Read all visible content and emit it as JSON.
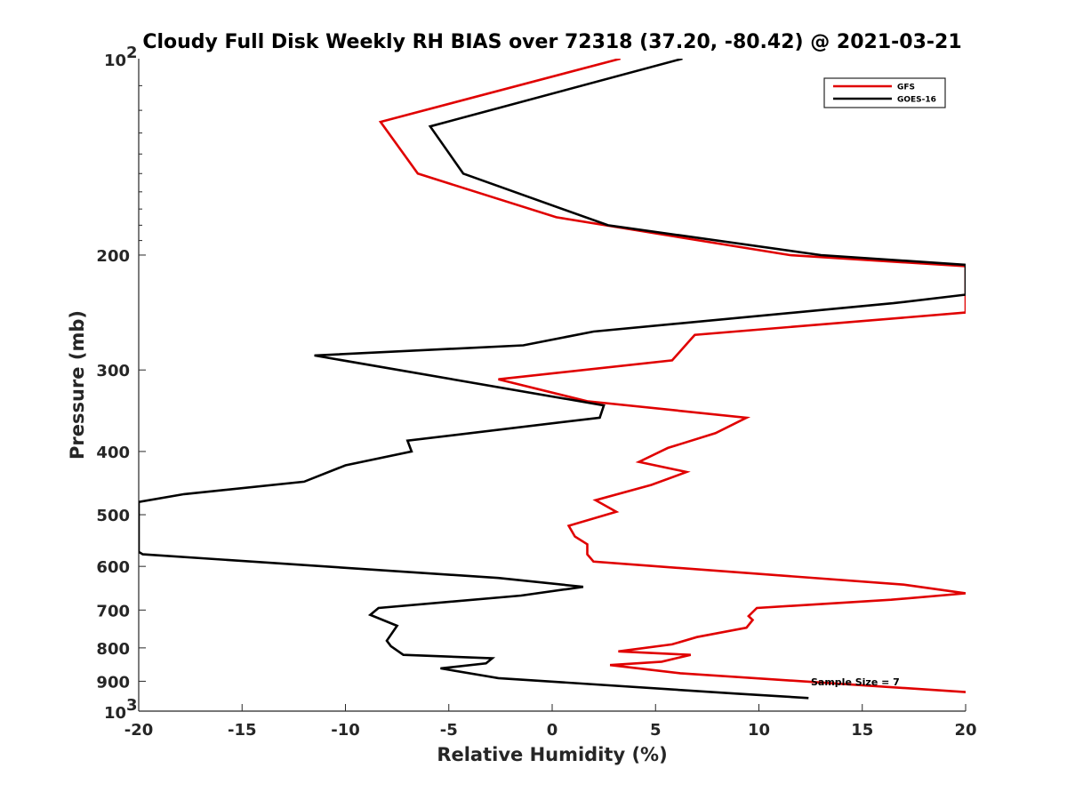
{
  "chart_data": {
    "type": "line",
    "title": "Cloudy Full Disk Weekly RH BIAS over 72318 (37.20, -80.42) @ 2021-03-21",
    "xlabel": "Relative Humidity (%)",
    "ylabel": "Pressure (mb)",
    "xlim": [
      -20,
      20
    ],
    "ylim": [
      100,
      1000
    ],
    "yscale": "log",
    "y_reversed": true,
    "x_ticks": [
      -20,
      -15,
      -10,
      -5,
      0,
      5,
      10,
      15,
      20
    ],
    "x_tick_labels": [
      "-20",
      "-15",
      "-10",
      "-5",
      "0",
      "5",
      "10",
      "15",
      "20"
    ],
    "y_ticks": [
      200,
      300,
      400,
      500,
      600,
      700,
      800,
      900
    ],
    "y_tick_labels": [
      "200",
      "300",
      "400",
      "500",
      "600",
      "700",
      "800",
      "900"
    ],
    "y_end_labels": {
      "top_base": "10",
      "top_exp": "2",
      "bottom_base": "10",
      "bottom_exp": "3"
    },
    "legend": {
      "position": "top-right",
      "entries": [
        "GFS",
        "GOES-16"
      ]
    },
    "annotation": "Sample Size = 7",
    "colors": {
      "GFS": "#e00000",
      "GOES-16": "#000000"
    },
    "series": [
      {
        "name": "GFS",
        "color": "#e00000",
        "points": [
          [
            3.3,
            100
          ],
          [
            -8.3,
            125
          ],
          [
            -6.5,
            150
          ],
          [
            0.2,
            175
          ],
          [
            11.5,
            200
          ],
          [
            20,
            208
          ],
          [
            20,
            245
          ],
          [
            6.9,
            265
          ],
          [
            5.8,
            290
          ],
          [
            -2.6,
            310
          ],
          [
            1.7,
            335
          ],
          [
            9.4,
            355
          ],
          [
            7.9,
            375
          ],
          [
            5.6,
            395
          ],
          [
            4.2,
            415
          ],
          [
            6.5,
            430
          ],
          [
            4.8,
            450
          ],
          [
            2.1,
            475
          ],
          [
            3.1,
            495
          ],
          [
            0.8,
            520
          ],
          [
            1.1,
            540
          ],
          [
            1.7,
            555
          ],
          [
            1.7,
            575
          ],
          [
            2.0,
            590
          ],
          [
            17.0,
            640
          ],
          [
            20,
            660
          ],
          [
            16.4,
            675
          ],
          [
            9.9,
            695
          ],
          [
            9.5,
            715
          ],
          [
            9.7,
            725
          ],
          [
            9.4,
            745
          ],
          [
            7.0,
            770
          ],
          [
            5.8,
            790
          ],
          [
            3.2,
            810
          ],
          [
            6.7,
            820
          ],
          [
            5.3,
            840
          ],
          [
            2.8,
            850
          ],
          [
            6.2,
            875
          ],
          [
            20,
            935
          ]
        ]
      },
      {
        "name": "GOES-16",
        "color": "#000000",
        "points": [
          [
            6.3,
            100
          ],
          [
            -5.9,
            127
          ],
          [
            -4.3,
            150
          ],
          [
            2.7,
            180
          ],
          [
            13.0,
            200
          ],
          [
            20,
            207
          ],
          [
            20,
            230
          ],
          [
            16.5,
            237
          ],
          [
            2.0,
            262
          ],
          [
            -1.4,
            275
          ],
          [
            -11.5,
            285
          ],
          [
            2.5,
            340
          ],
          [
            2.3,
            355
          ],
          [
            -7.0,
            385
          ],
          [
            -6.8,
            400
          ],
          [
            -10.0,
            420
          ],
          [
            -12.0,
            445
          ],
          [
            -17.8,
            465
          ],
          [
            -20,
            478
          ],
          [
            -20,
            570
          ],
          [
            -19.8,
            575
          ],
          [
            -2.6,
            625
          ],
          [
            1.5,
            645
          ],
          [
            -1.5,
            665
          ],
          [
            -8.4,
            695
          ],
          [
            -8.8,
            712
          ],
          [
            -7.5,
            740
          ],
          [
            -8.0,
            780
          ],
          [
            -7.8,
            795
          ],
          [
            -7.2,
            820
          ],
          [
            -2.9,
            830
          ],
          [
            -3.2,
            845
          ],
          [
            -5.4,
            860
          ],
          [
            -2.6,
            890
          ],
          [
            8.9,
            940
          ],
          [
            12.4,
            955
          ]
        ]
      }
    ]
  }
}
